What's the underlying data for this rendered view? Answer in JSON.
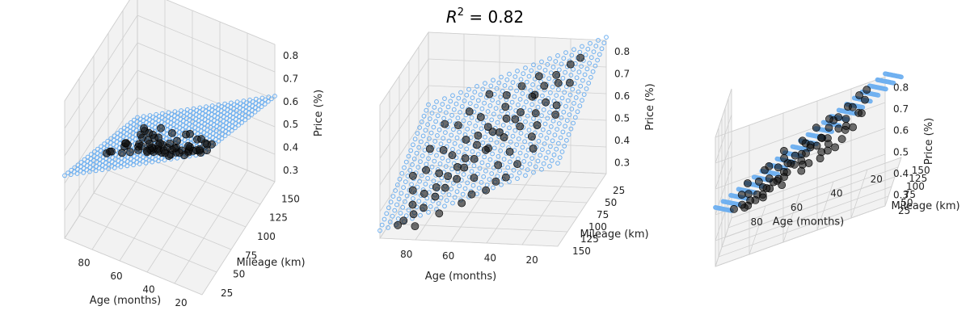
{
  "title": {
    "r2_label": "R",
    "r2_exp": "2",
    "r2_value": " = 0.82"
  },
  "colors": {
    "surface_marker": "#6fb0f0",
    "scatter": "#111111",
    "pane": "#f2f2f2",
    "grid": "#cfcfcf"
  },
  "chart_data": [
    {
      "type": "scatter",
      "view": "front-left",
      "xlabel": "Age (months)",
      "ylabel": "Mileage (km)",
      "zlabel": "Price (%)",
      "xticks": [
        20,
        40,
        60,
        80
      ],
      "yticks": [
        25,
        50,
        75,
        100,
        125,
        150
      ],
      "zticks": [
        0.3,
        0.4,
        0.5,
        0.6,
        0.7,
        0.8
      ],
      "xlim": [
        10,
        95
      ],
      "ylim": [
        10,
        160
      ],
      "zlim": [
        0.25,
        0.85
      ],
      "grid": true
    },
    {
      "type": "scatter",
      "view": "side",
      "xlabel": "Age (months)",
      "ylabel": "Mileage (km)",
      "zlabel": "Price (%)",
      "xticks": [
        20,
        40,
        60,
        80
      ],
      "ytick_labels": [
        "150",
        "125",
        "100",
        "75",
        "50",
        "25"
      ],
      "zticks": [
        0.3,
        0.4,
        0.5,
        0.6,
        0.7,
        0.8
      ],
      "xlim": [
        10,
        95
      ],
      "ylim": [
        10,
        160
      ],
      "zlim": [
        0.25,
        0.85
      ],
      "grid": true
    },
    {
      "type": "scatter",
      "view": "back-right",
      "xlabel": "Age (months)",
      "ylabel": "Mileage (km)",
      "zlabel": "Price (%)",
      "xticks": [
        20,
        40,
        60,
        80
      ],
      "yticks": [
        25,
        50,
        75,
        100,
        125,
        150
      ],
      "zticks": [
        0.3,
        0.4,
        0.5,
        0.6,
        0.7,
        0.8
      ],
      "xlim": [
        10,
        95
      ],
      "ylim": [
        10,
        160
      ],
      "zlim": [
        0.25,
        0.85
      ],
      "grid": true
    }
  ],
  "scatter_points": [
    [
      24,
      30,
      0.78
    ],
    [
      28,
      42,
      0.72
    ],
    [
      30,
      35,
      0.74
    ],
    [
      32,
      55,
      0.66
    ],
    [
      35,
      40,
      0.7
    ],
    [
      36,
      60,
      0.62
    ],
    [
      38,
      50,
      0.68
    ],
    [
      40,
      45,
      0.66
    ],
    [
      42,
      70,
      0.58
    ],
    [
      44,
      55,
      0.61
    ],
    [
      45,
      65,
      0.6
    ],
    [
      46,
      38,
      0.69
    ],
    [
      48,
      80,
      0.55
    ],
    [
      50,
      60,
      0.59
    ],
    [
      51,
      75,
      0.56
    ],
    [
      52,
      50,
      0.62
    ],
    [
      54,
      90,
      0.52
    ],
    [
      55,
      70,
      0.55
    ],
    [
      56,
      85,
      0.5
    ],
    [
      58,
      65,
      0.56
    ],
    [
      60,
      95,
      0.48
    ],
    [
      61,
      80,
      0.51
    ],
    [
      62,
      70,
      0.53
    ],
    [
      64,
      100,
      0.45
    ],
    [
      65,
      90,
      0.47
    ],
    [
      66,
      110,
      0.42
    ],
    [
      68,
      95,
      0.44
    ],
    [
      70,
      120,
      0.4
    ],
    [
      71,
      105,
      0.42
    ],
    [
      72,
      85,
      0.47
    ],
    [
      74,
      125,
      0.37
    ],
    [
      75,
      115,
      0.39
    ],
    [
      76,
      100,
      0.42
    ],
    [
      78,
      135,
      0.34
    ],
    [
      80,
      120,
      0.37
    ],
    [
      82,
      140,
      0.32
    ],
    [
      84,
      130,
      0.34
    ],
    [
      86,
      145,
      0.3
    ],
    [
      88,
      150,
      0.29
    ],
    [
      20,
      25,
      0.8
    ],
    [
      22,
      45,
      0.73
    ],
    [
      26,
      60,
      0.66
    ],
    [
      33,
      75,
      0.6
    ],
    [
      39,
      30,
      0.72
    ],
    [
      43,
      95,
      0.52
    ],
    [
      47,
      105,
      0.48
    ],
    [
      53,
      40,
      0.65
    ],
    [
      57,
      115,
      0.44
    ],
    [
      63,
      55,
      0.58
    ],
    [
      67,
      75,
      0.52
    ],
    [
      73,
      60,
      0.55
    ],
    [
      77,
      80,
      0.48
    ],
    [
      83,
      95,
      0.42
    ],
    [
      87,
      110,
      0.36
    ],
    [
      34,
      85,
      0.57
    ],
    [
      41,
      120,
      0.46
    ],
    [
      49,
      130,
      0.42
    ],
    [
      59,
      140,
      0.38
    ],
    [
      69,
      145,
      0.34
    ],
    [
      79,
      155,
      0.3
    ],
    [
      25,
      70,
      0.64
    ],
    [
      31,
      100,
      0.55
    ],
    [
      37,
      110,
      0.5
    ],
    [
      45,
      125,
      0.45
    ],
    [
      55,
      135,
      0.41
    ],
    [
      62,
      35,
      0.64
    ],
    [
      70,
      45,
      0.58
    ],
    [
      81,
      50,
      0.53
    ],
    [
      85,
      70,
      0.46
    ],
    [
      90,
      90,
      0.38
    ]
  ]
}
